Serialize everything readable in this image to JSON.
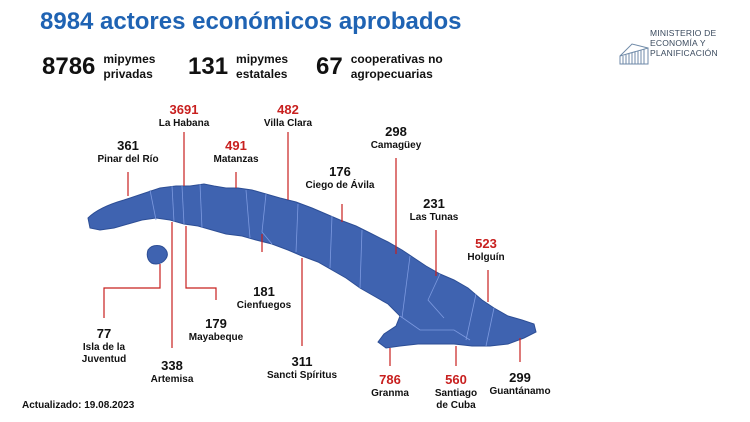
{
  "title": "8984 actores económicos aprobados",
  "summary": [
    {
      "value": "8786",
      "label": "mipymes\nprivadas"
    },
    {
      "value": "131",
      "label": "mipymes\nestatales"
    },
    {
      "value": "67",
      "label": "cooperativas no\nagropecuarias"
    }
  ],
  "logo_text": "MINISTERIO DE\nECONOMÍA  Y\nPLANIFICACIÓN",
  "provinces": [
    {
      "name": "Pinar del Río",
      "value": "361",
      "highlight": false
    },
    {
      "name": "La Habana",
      "value": "3691",
      "highlight": true
    },
    {
      "name": "Matanzas",
      "value": "491",
      "highlight": true
    },
    {
      "name": "Villa Clara",
      "value": "482",
      "highlight": true
    },
    {
      "name": "Ciego de Ávila",
      "value": "176",
      "highlight": false
    },
    {
      "name": "Camagüey",
      "value": "298",
      "highlight": false
    },
    {
      "name": "Las Tunas",
      "value": "231",
      "highlight": false
    },
    {
      "name": "Holguín",
      "value": "523",
      "highlight": true
    },
    {
      "name": "Cienfuegos",
      "value": "181",
      "highlight": false
    },
    {
      "name": "Mayabeque",
      "value": "179",
      "highlight": false
    },
    {
      "name": "Isla de la",
      "name2": "Juventud",
      "value": "77",
      "highlight": false
    },
    {
      "name": "Artemisa",
      "value": "338",
      "highlight": false
    },
    {
      "name": "Sancti Spíritus",
      "value": "311",
      "highlight": false
    },
    {
      "name": "Granma",
      "value": "786",
      "highlight": true
    },
    {
      "name": "Santiago",
      "name2": "de Cuba",
      "value": "560",
      "highlight": true
    },
    {
      "name": "Guantánamo",
      "value": "299",
      "highlight": false
    }
  ],
  "updated": "Actualizado: 19.08.2023",
  "colors": {
    "title": "#1f63b3",
    "map_fill": "#3f63b0",
    "map_stroke": "#6b8fd6",
    "highlight": "#c8201f",
    "leader": "#c8201f"
  }
}
